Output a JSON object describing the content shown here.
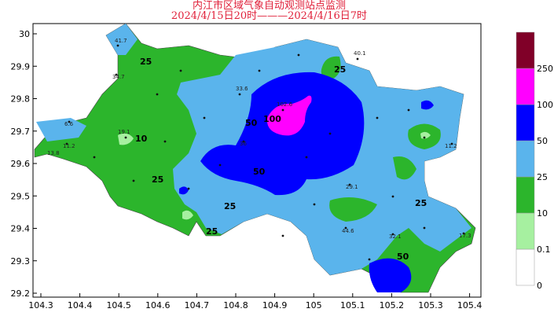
{
  "title": {
    "line1": "内江市区域气象自动观测站点监测",
    "line2": "2024/4/15日20时———2024/4/16日7时"
  },
  "map": {
    "x_ticks": [
      "104.3",
      "104.4",
      "104.5",
      "104.6",
      "104.7",
      "104.8",
      "104.9",
      "105",
      "105.1",
      "105.2",
      "105.3",
      "105.4"
    ],
    "y_ticks": [
      "30",
      "29.9",
      "29.8",
      "29.7",
      "29.6",
      "29.5",
      "29.4",
      "29.3",
      "29.2"
    ],
    "contour_labels": [
      "25",
      "10",
      "25",
      "50",
      "100",
      "50",
      "25",
      "25",
      "25",
      "25",
      "50"
    ],
    "station_values": [
      "41.7",
      "34.7",
      "6.6",
      "11.2",
      "13.8",
      "19.1",
      "102.6",
      "33.6",
      "36",
      "29.1",
      "44.6",
      "40.1",
      "32.1",
      "11.2",
      "17.3"
    ]
  },
  "legend": {
    "levels": [
      "0",
      "0.1",
      "10",
      "25",
      "50",
      "100",
      "250"
    ],
    "colors": [
      "#ffffff",
      "#a6f0a0",
      "#2cb52c",
      "#5ab4ec",
      "#0000ff",
      "#ff00ff",
      "#800028"
    ]
  }
}
